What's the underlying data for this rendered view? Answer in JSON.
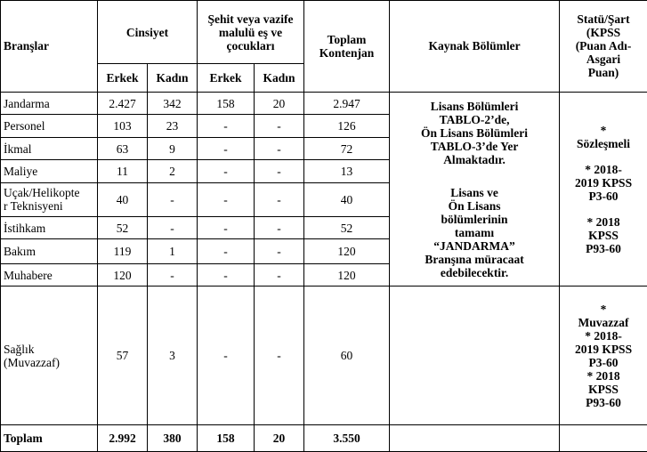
{
  "header": {
    "branslar": "Branşlar",
    "cinsiyet": "Cinsiyet",
    "sehit": [
      "Şehit veya vazife",
      "malulü eş ve",
      "çocukları"
    ],
    "toplam_kontenjan": [
      "Toplam",
      "Kontenjan"
    ],
    "kaynak_bolumler": "Kaynak Bölümler",
    "statu": [
      "Statü/Şart",
      "(KPSS",
      "(Puan Adı-",
      "Asgari",
      "Puan)"
    ],
    "erkek": "Erkek",
    "kadin": "Kadın"
  },
  "rows": [
    {
      "brans": "Jandarma",
      "erkek": "2.427",
      "kadin": "342",
      "sehit_erkek": "158",
      "sehit_kadin": "20",
      "toplam": "2.947"
    },
    {
      "brans": "Personel",
      "erkek": "103",
      "kadin": "23",
      "sehit_erkek": "-",
      "sehit_kadin": "-",
      "toplam": "126"
    },
    {
      "brans": "İkmal",
      "erkek": "63",
      "kadin": "9",
      "sehit_erkek": "-",
      "sehit_kadin": "-",
      "toplam": "72"
    },
    {
      "brans": "Maliye",
      "erkek": "11",
      "kadin": "2",
      "sehit_erkek": "-",
      "sehit_kadin": "-",
      "toplam": "13"
    },
    {
      "brans": [
        "Uçak/Helikopte",
        "r Teknisyeni"
      ],
      "erkek": "40",
      "kadin": "-",
      "sehit_erkek": "-",
      "sehit_kadin": "-",
      "toplam": "40"
    },
    {
      "brans": "İstihkam",
      "erkek": "52",
      "kadin": "-",
      "sehit_erkek": "-",
      "sehit_kadin": "-",
      "toplam": "52"
    },
    {
      "brans": "Bakım",
      "erkek": "119",
      "kadin": "1",
      "sehit_erkek": "-",
      "sehit_kadin": "-",
      "toplam": "120"
    },
    {
      "brans": "Muhabere",
      "erkek": "120",
      "kadin": "-",
      "sehit_erkek": "-",
      "sehit_kadin": "-",
      "toplam": "120"
    },
    {
      "brans": [
        "Sağlık",
        "(Muvazzaf)"
      ],
      "erkek": "57",
      "kadin": "3",
      "sehit_erkek": "-",
      "sehit_kadin": "-",
      "toplam": "60"
    }
  ],
  "total": {
    "label": "Toplam",
    "erkek": "2.992",
    "kadin": "380",
    "sehit_erkek": "158",
    "sehit_kadin": "20",
    "toplam": "3.550"
  },
  "kaynak_text": {
    "block1": [
      "Lisans Bölümleri",
      "TABLO-2’de,",
      "Ön Lisans Bölümleri",
      "TABLO-3’de Yer",
      "Almaktadır."
    ],
    "block2": [
      "Lisans ve",
      "Ön Lisans",
      "bölümlerinin",
      "tamamı",
      "“JANDARMA”",
      "Branşına müracaat",
      "edebilecektir."
    ]
  },
  "statu_sozlesmeli": [
    "*",
    "Sözleşmeli",
    "* 2018-",
    "2019 KPSS",
    "P3-60",
    "* 2018",
    "KPSS",
    "P93-60"
  ],
  "statu_muvazzaf": [
    "*",
    "Muvazzaf",
    "* 2018-",
    "2019 KPSS",
    "P3-60",
    "* 2018",
    "KPSS",
    "P93-60"
  ]
}
